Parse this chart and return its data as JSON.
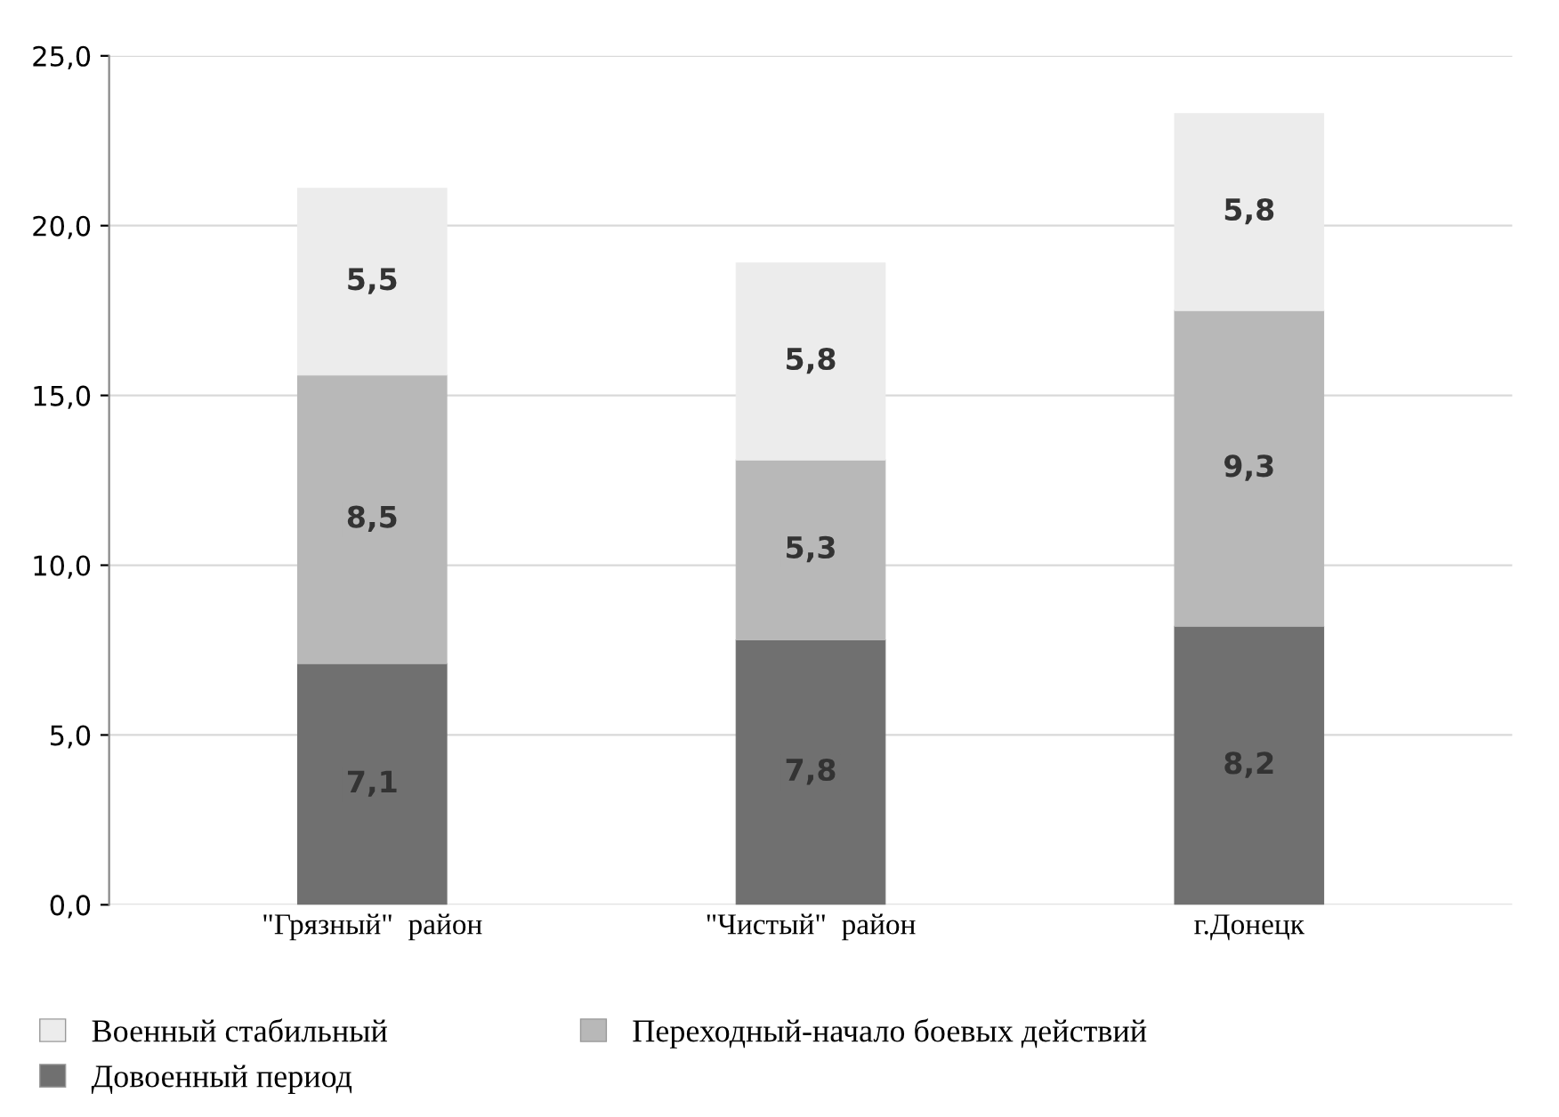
{
  "chart_data": {
    "type": "bar",
    "stacked": true,
    "categories": [
      "\"Грязный\"  район",
      "\"Чистый\"  район",
      "г.Донецк"
    ],
    "series": [
      {
        "name": "Довоенный период",
        "color": "#707070",
        "values": [
          7.1,
          7.8,
          8.2
        ],
        "value_labels": [
          "7,1",
          "7,8",
          "8,2"
        ]
      },
      {
        "name": "Переходный-начало боевых действий",
        "color": "#b8b8b8",
        "values": [
          8.5,
          5.3,
          9.3
        ],
        "value_labels": [
          "8,5",
          "5,3",
          "9,3"
        ]
      },
      {
        "name": "Военный стабильный",
        "color": "#ececec",
        "values": [
          5.5,
          5.8,
          5.8
        ],
        "value_labels": [
          "5,5",
          "5,8",
          "5,8"
        ]
      }
    ],
    "ylim": [
      0,
      25
    ],
    "yticks": [
      {
        "value": 0,
        "label": "0,0"
      },
      {
        "value": 5,
        "label": "5,0"
      },
      {
        "value": 10,
        "label": "10,0"
      },
      {
        "value": 15,
        "label": "15,0"
      },
      {
        "value": 20,
        "label": "20,0"
      },
      {
        "value": 25,
        "label": "25,0"
      }
    ],
    "grid": "y",
    "legend": "bottom"
  }
}
